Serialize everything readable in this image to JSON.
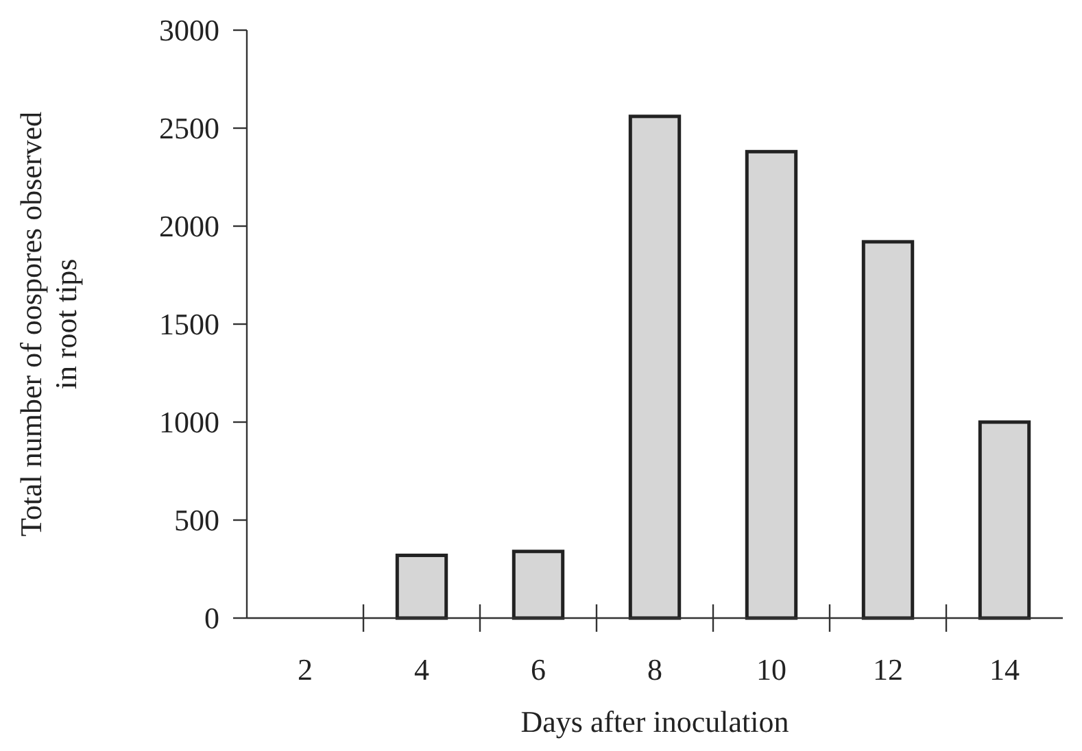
{
  "chart_data": {
    "type": "bar",
    "xlabel": "Days after inoculation",
    "ylabel": "Total number of oospores observed in root tips",
    "categories": [
      "2",
      "4",
      "6",
      "8",
      "10",
      "12",
      "14"
    ],
    "values": [
      0,
      320,
      340,
      2560,
      2380,
      1920,
      1000
    ],
    "color": "#d6d6d6",
    "ylim": [
      0,
      3000
    ],
    "yticks": [
      0,
      500,
      1000,
      1500,
      2000,
      2500,
      3000
    ],
    "grid": false
  }
}
